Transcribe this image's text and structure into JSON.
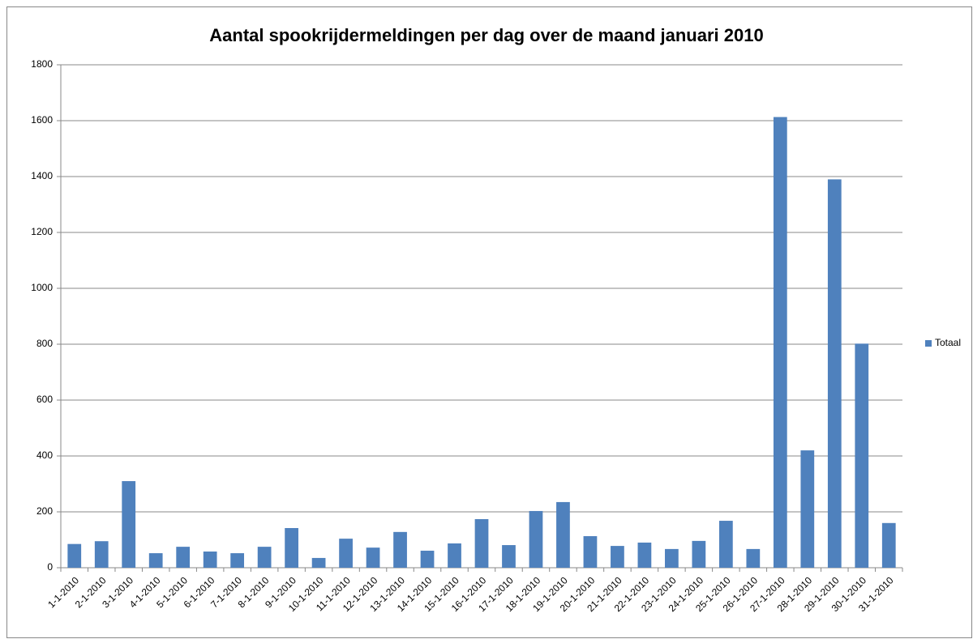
{
  "chart_data": {
    "type": "bar",
    "title": "Aantal spookrijdermeldingen per dag over de maand januari 2010",
    "categories": [
      "1-1-2010",
      "2-1-2010",
      "3-1-2010",
      "4-1-2010",
      "5-1-2010",
      "6-1-2010",
      "7-1-2010",
      "8-1-2010",
      "9-1-2010",
      "10-1-2010",
      "11-1-2010",
      "12-1-2010",
      "13-1-2010",
      "14-1-2010",
      "15-1-2010",
      "16-1-2010",
      "17-1-2010",
      "18-1-2010",
      "19-1-2010",
      "20-1-2010",
      "21-1-2010",
      "22-1-2010",
      "23-1-2010",
      "24-1-2010",
      "25-1-2010",
      "26-1-2010",
      "27-1-2010",
      "28-1-2010",
      "29-1-2010",
      "30-1-2010",
      "31-1-2010"
    ],
    "series": [
      {
        "name": "Totaal",
        "color": "#4f81bd",
        "values": [
          85,
          95,
          310,
          52,
          75,
          58,
          52,
          75,
          142,
          35,
          104,
          72,
          128,
          61,
          87,
          174,
          81,
          203,
          235,
          113,
          78,
          90,
          67,
          96,
          168,
          67,
          1613,
          420,
          1390,
          802,
          160
        ]
      }
    ],
    "ylim": [
      0,
      1800
    ],
    "yticks": [
      0,
      200,
      400,
      600,
      800,
      1000,
      1200,
      1400,
      1600,
      1800
    ],
    "grid": true,
    "legend": "right"
  }
}
